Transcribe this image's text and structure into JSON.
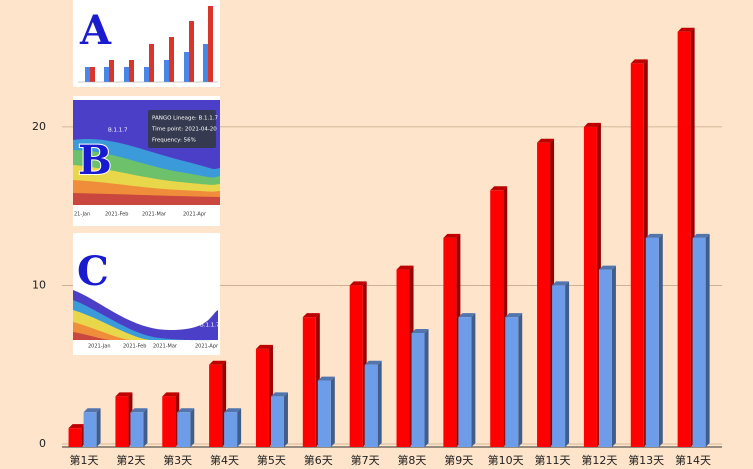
{
  "chart_data": {
    "type": "bar",
    "categories": [
      "第1天",
      "第2天",
      "第3天",
      "第4天",
      "第5天",
      "第6天",
      "第7天",
      "第8天",
      "第9天",
      "第10天",
      "第11天",
      "第12天",
      "第13天",
      "第14天"
    ],
    "series": [
      {
        "color": "#ff0000",
        "values": [
          1,
          3,
          3,
          5,
          6,
          8,
          10,
          11,
          13,
          16,
          19,
          20,
          24,
          26
        ]
      },
      {
        "color": "#6d9ce8",
        "values": [
          2,
          2,
          2,
          2,
          3,
          4,
          5,
          7,
          8,
          8,
          10,
          11,
          13,
          13
        ]
      }
    ],
    "ylim": [
      0,
      28
    ],
    "yticks": [
      0,
      10,
      20
    ],
    "grid": true
  },
  "insets": [
    {
      "label": "A"
    },
    {
      "label": "B",
      "lineage": "B.1.1.7",
      "tooltip": [
        "PANGO Lineage: B.1.1.7",
        "Time point: 2021-04-20",
        "Frequency: 56%"
      ],
      "dates": [
        "21-Jan",
        "2021-Feb",
        "2021-Mar",
        "2021-Apr"
      ]
    },
    {
      "label": "C",
      "lineage": "B.1.1.7",
      "dates": [
        "2021-Jan",
        "2021-Feb",
        "2021-Mar",
        "2021-Apr"
      ]
    }
  ]
}
